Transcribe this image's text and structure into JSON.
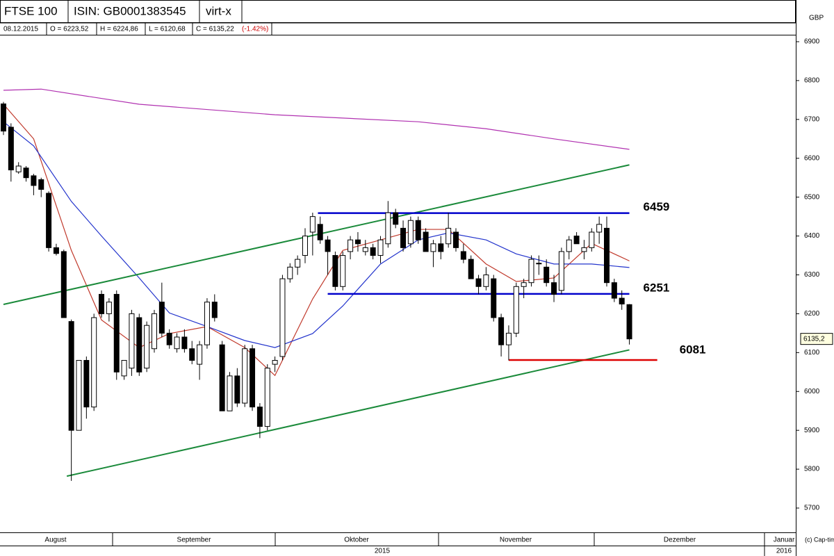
{
  "header": {
    "title": "FTSE 100",
    "isin": "ISIN: GB0001383545",
    "exchange": "virt-x",
    "date": "08.12.2015",
    "open": "O = 6223,52",
    "high": "H = 6224,86",
    "low": "L = 6120,68",
    "close": "C = 6135,22",
    "change": "(-1.42%)"
  },
  "chart_data": {
    "type": "candlestick",
    "currency": "GBP",
    "last_price_label": "6135,2",
    "ylim": [
      5700,
      6900
    ],
    "yticks": [
      5700,
      5800,
      5900,
      6000,
      6100,
      6200,
      6300,
      6400,
      6500,
      6600,
      6700,
      6800,
      6900
    ],
    "months": [
      "August",
      "September",
      "Oktober",
      "November",
      "Dezember",
      "Januar"
    ],
    "years": [
      "2015",
      "2016"
    ],
    "open": [
      6740,
      6680,
      6565,
      6575,
      6555,
      6545,
      6510,
      6370,
      6360,
      6180,
      5900,
      6080,
      5960,
      6250,
      6200,
      6250,
      6040,
      6060,
      6190,
      6060,
      6110,
      6230,
      6150,
      6110,
      6140,
      6110,
      6070,
      6120,
      6230,
      6120,
      5950,
      6040,
      5970,
      6110,
      5960,
      5910,
      6070,
      6090,
      6290,
      6320,
      6350,
      6410,
      6430,
      6390,
      6350,
      6270,
      6360,
      6390,
      6360,
      6370,
      6350,
      6380,
      6460,
      6420,
      6380,
      6440,
      6410,
      6360,
      6380,
      6380,
      6410,
      6360,
      6340,
      6290,
      6270,
      6290,
      6190,
      6120,
      6150,
      6270,
      6280,
      6330,
      6320,
      6280,
      6260,
      6360,
      6400,
      6360,
      6370,
      6410,
      6420,
      6280,
      6240,
      6223.52
    ],
    "high": [
      6745,
      6690,
      6590,
      6580,
      6560,
      6550,
      6515,
      6380,
      6365,
      6185,
      6080,
      6090,
      6200,
      6260,
      6240,
      6260,
      6080,
      6210,
      6200,
      6180,
      6210,
      6280,
      6160,
      6150,
      6160,
      6130,
      6130,
      6240,
      6250,
      6130,
      6050,
      6060,
      6120,
      6120,
      5970,
      6070,
      6090,
      6300,
      6330,
      6350,
      6420,
      6460,
      6450,
      6400,
      6360,
      6360,
      6400,
      6410,
      6390,
      6380,
      6400,
      6490,
      6470,
      6440,
      6450,
      6450,
      6420,
      6390,
      6400,
      6460,
      6420,
      6380,
      6350,
      6300,
      6320,
      6300,
      6200,
      6170,
      6280,
      6290,
      6350,
      6350,
      6340,
      6300,
      6370,
      6400,
      6410,
      6390,
      6420,
      6450,
      6450,
      6290,
      6260,
      6224.86
    ],
    "low": [
      6660,
      6540,
      6560,
      6540,
      6505,
      6500,
      6360,
      6350,
      6190,
      5770,
      5900,
      5930,
      5950,
      6190,
      6180,
      6030,
      6030,
      6040,
      6040,
      6050,
      6100,
      6140,
      6110,
      6100,
      6100,
      6070,
      6030,
      6110,
      6180,
      5950,
      5950,
      5960,
      5960,
      5950,
      5880,
      5900,
      6050,
      6080,
      6280,
      6300,
      6330,
      6350,
      6380,
      6300,
      6260,
      6260,
      6340,
      6360,
      6350,
      6340,
      6330,
      6370,
      6420,
      6360,
      6370,
      6380,
      6360,
      6320,
      6340,
      6370,
      6360,
      6330,
      6290,
      6250,
      6260,
      6180,
      6090,
      6080,
      6140,
      6240,
      6270,
      6300,
      6270,
      6230,
      6250,
      6340,
      6380,
      6340,
      6360,
      6380,
      6270,
      6230,
      6210,
      6120.68
    ],
    "close": [
      6670,
      6570,
      6580,
      6550,
      6530,
      6520,
      6370,
      6355,
      6190,
      5900,
      6080,
      5960,
      6190,
      6200,
      6230,
      6050,
      6080,
      6200,
      6050,
      6170,
      6200,
      6150,
      6120,
      6140,
      6110,
      6080,
      6120,
      6230,
      6190,
      5950,
      6040,
      5970,
      6110,
      5960,
      5910,
      6060,
      6080,
      6290,
      6320,
      6340,
      6400,
      6450,
      6390,
      6360,
      6270,
      6350,
      6390,
      6380,
      6370,
      6350,
      6390,
      6460,
      6430,
      6370,
      6440,
      6390,
      6360,
      6380,
      6360,
      6420,
      6370,
      6340,
      6290,
      6270,
      6300,
      6190,
      6120,
      6150,
      6270,
      6280,
      6340,
      6330,
      6280,
      6250,
      6360,
      6390,
      6380,
      6370,
      6410,
      6430,
      6280,
      6240,
      6225,
      6135.22
    ],
    "series": [
      {
        "color": "#c0392b",
        "x": [
          0,
          4,
          9,
          13,
          18,
          22,
          27,
          32,
          36,
          41,
          45,
          50,
          55,
          59,
          64,
          68,
          73,
          78,
          83
        ],
        "values": [
          6739,
          6650,
          6363,
          6184,
          6113,
          6149,
          6167,
          6113,
          6041,
          6238,
          6363,
          6390,
          6417,
          6417,
          6328,
          6283,
          6292,
          6381,
          6336
        ]
      },
      {
        "color": "#2233cc",
        "x": [
          0,
          4,
          9,
          13,
          18,
          22,
          27,
          32,
          36,
          41,
          45,
          50,
          55,
          59,
          64,
          68,
          73,
          78,
          83
        ],
        "values": [
          6694,
          6632,
          6489,
          6400,
          6292,
          6202,
          6167,
          6131,
          6113,
          6149,
          6220,
          6328,
          6390,
          6408,
          6390,
          6354,
          6328,
          6328,
          6319
        ]
      },
      {
        "color": "#b030b0",
        "x": [
          0,
          5,
          18,
          36,
          55,
          64,
          73,
          83
        ],
        "values": [
          6775,
          6778,
          6739,
          6712,
          6694,
          6676,
          6650,
          6623
        ]
      }
    ],
    "trendlines": [
      {
        "color": "#1a8a3a",
        "x": [
          0,
          83
        ],
        "values": [
          6224,
          6583
        ]
      },
      {
        "color": "#1a8a3a",
        "x": [
          8.4,
          83
        ],
        "values": [
          5782,
          6107
        ]
      }
    ],
    "levels": [
      {
        "value": 6459,
        "color": "#0000cc",
        "x": [
          41.7,
          83
        ]
      },
      {
        "value": 6251,
        "color": "#0000cc",
        "x": [
          43,
          83
        ]
      },
      {
        "value": 6081,
        "color": "#dd0000",
        "x": [
          67,
          86.7
        ]
      }
    ],
    "copyright": "(c) Cap-timizer"
  }
}
